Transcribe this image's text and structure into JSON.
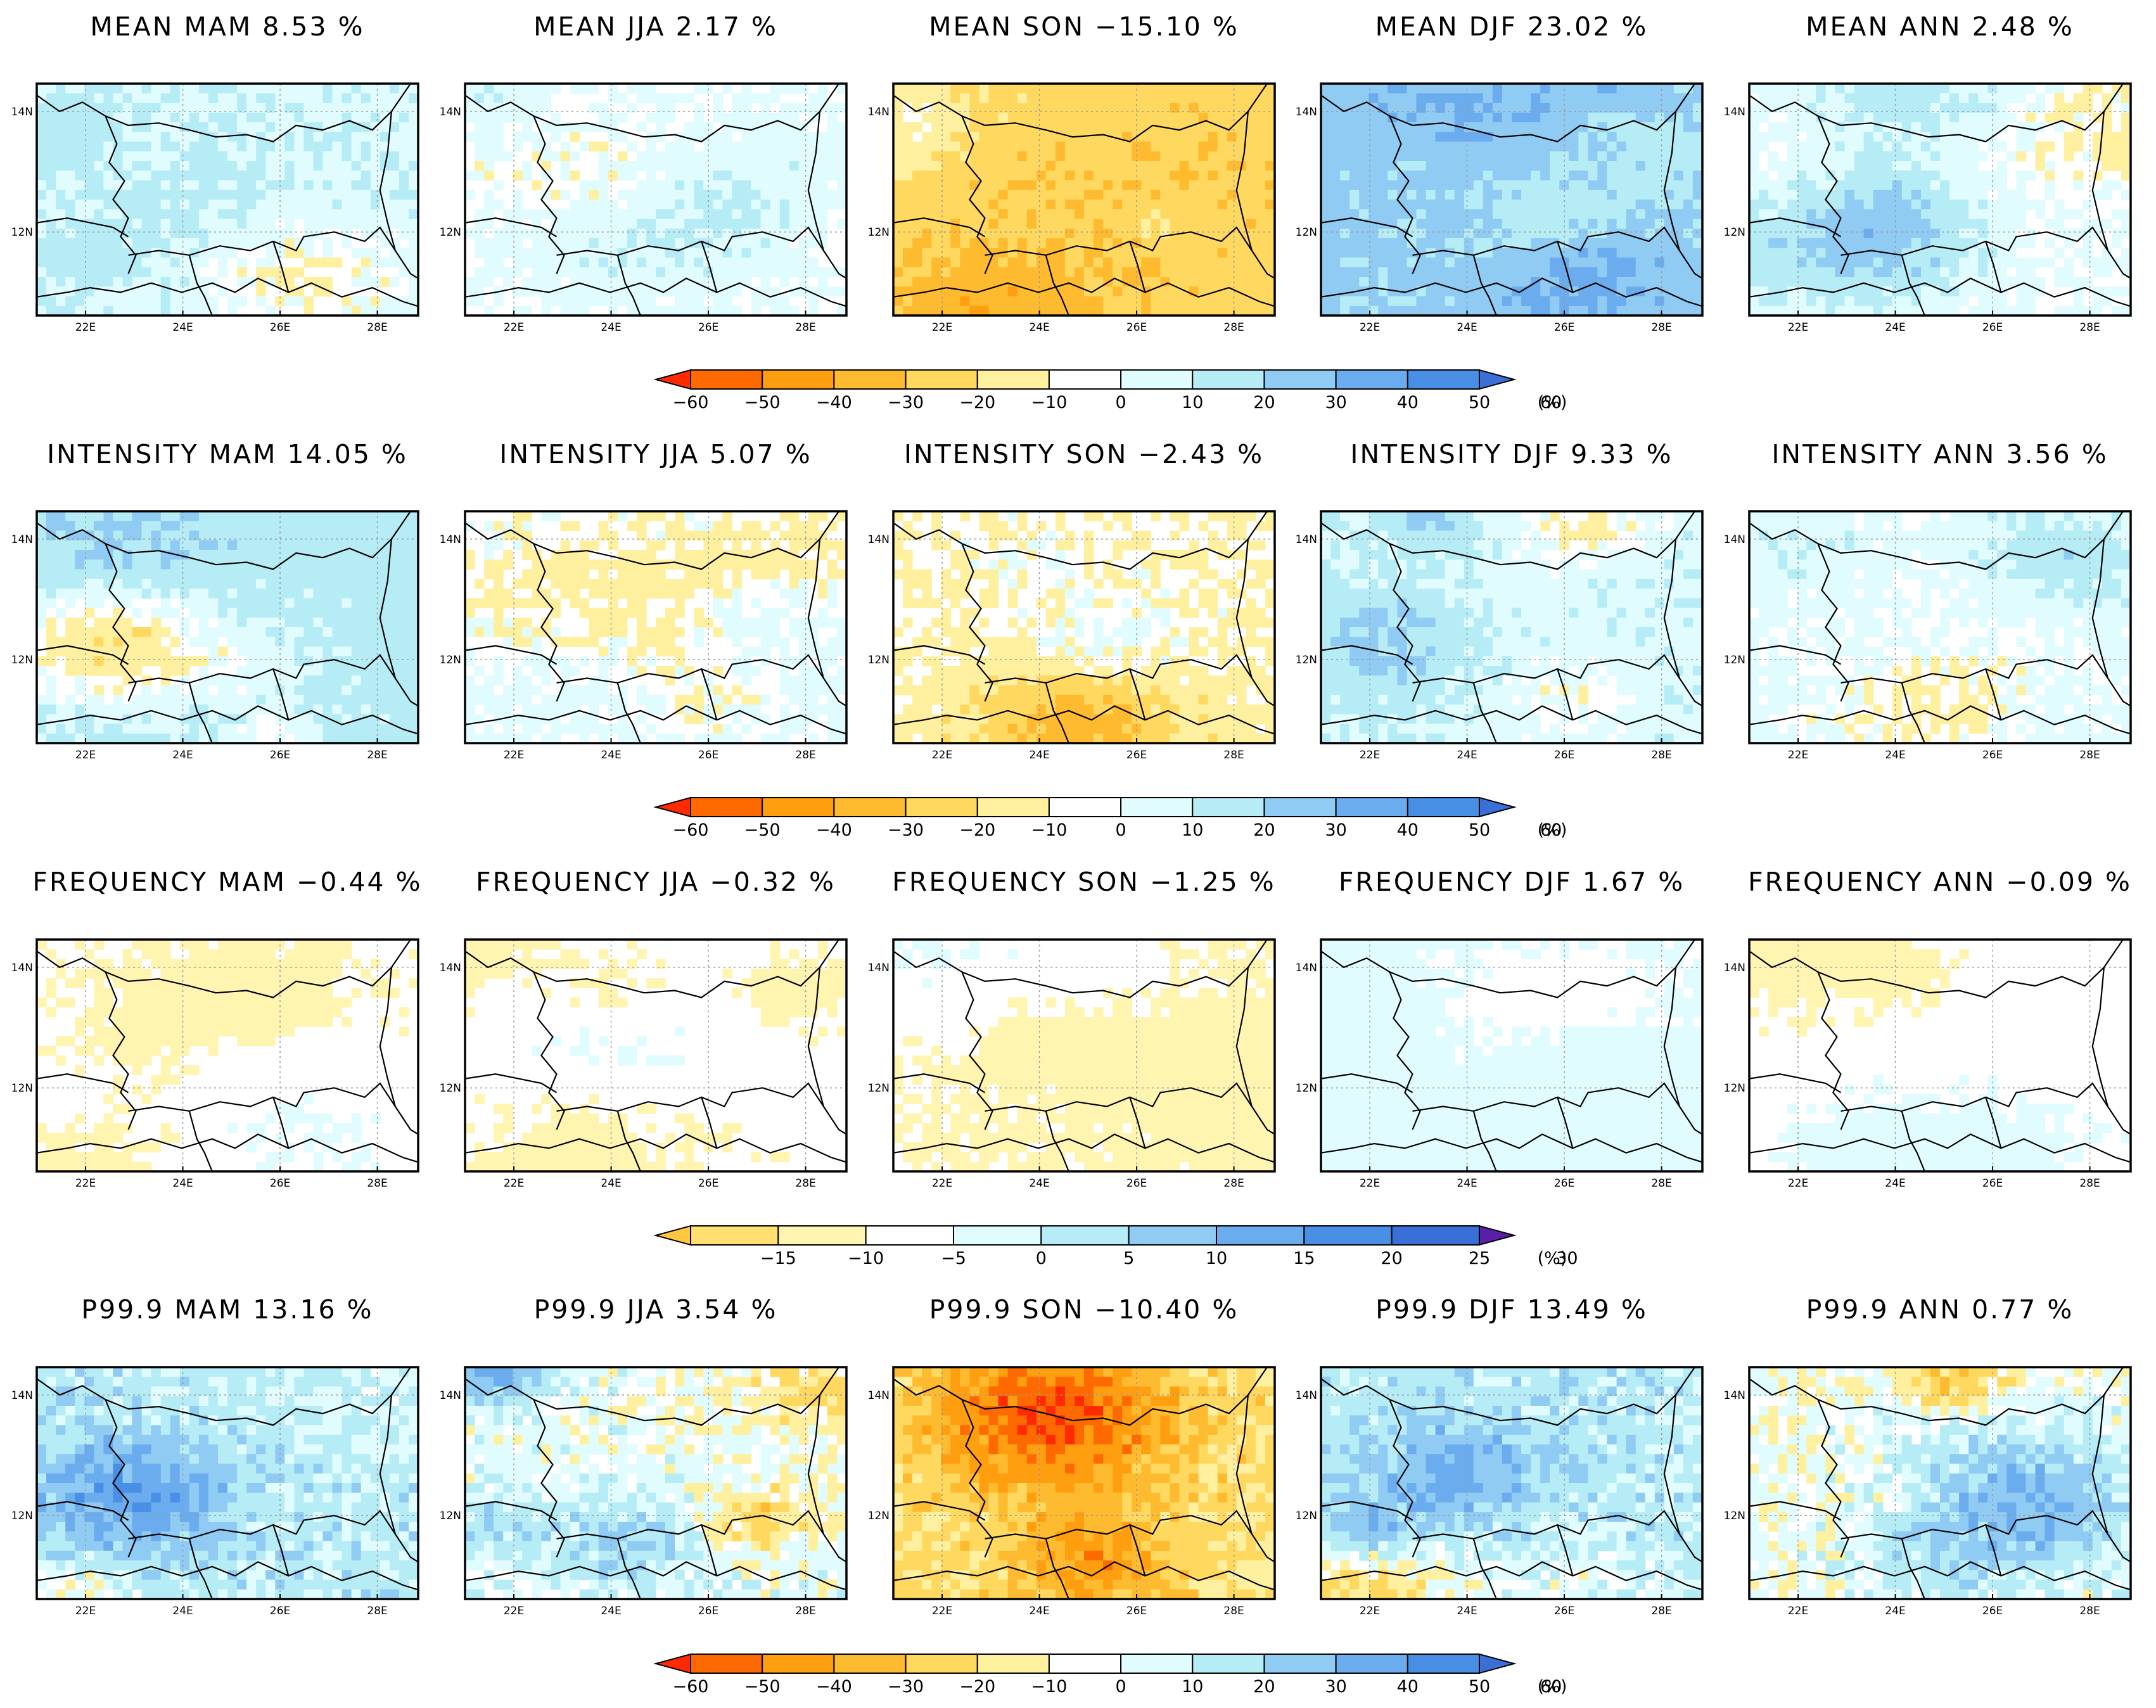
{
  "figure": {
    "seasons": [
      "MAM",
      "JJA",
      "SON",
      "DJF",
      "ANN"
    ],
    "unit_label": "(%)",
    "axis": {
      "lon_ticks": [
        "22E",
        "24E",
        "26E",
        "28E"
      ],
      "lat_ticks": [
        "14N",
        "12N"
      ]
    }
  },
  "chart_data": [
    {
      "type": "heatmap",
      "row": "MEAN",
      "titles": [
        "MEAN MAM 8.53 %",
        "MEAN JJA 2.17 %",
        "MEAN SON −15.10 %",
        "MEAN DJF 23.02 %",
        "MEAN ANN 2.48 %"
      ],
      "values": [
        8.53,
        2.17,
        -15.1,
        23.02,
        2.48
      ],
      "colorbar": {
        "ticks": [
          "−60",
          "−50",
          "−40",
          "−30",
          "−20",
          "−10",
          "0",
          "10",
          "20",
          "30",
          "40",
          "50",
          "60"
        ],
        "range": [
          -60,
          60
        ],
        "unit": "(%)"
      }
    },
    {
      "type": "heatmap",
      "row": "INTENSITY",
      "titles": [
        "INTENSITY MAM 14.05 %",
        "INTENSITY JJA 5.07 %",
        "INTENSITY SON −2.43 %",
        "INTENSITY DJF 9.33 %",
        "INTENSITY ANN 3.56 %"
      ],
      "values": [
        14.05,
        5.07,
        -2.43,
        9.33,
        3.56
      ],
      "colorbar": {
        "ticks": [
          "−60",
          "−50",
          "−40",
          "−30",
          "−20",
          "−10",
          "0",
          "10",
          "20",
          "30",
          "40",
          "50",
          "60"
        ],
        "range": [
          -60,
          60
        ],
        "unit": "(%)"
      }
    },
    {
      "type": "heatmap",
      "row": "FREQUENCY",
      "titles": [
        "FREQUENCY MAM −0.44 %",
        "FREQUENCY JJA −0.32 %",
        "FREQUENCY SON −1.25 %",
        "FREQUENCY DJF 1.67 %",
        "FREQUENCY ANN −0.09 %"
      ],
      "values": [
        -0.44,
        -0.32,
        -1.25,
        1.67,
        -0.09
      ],
      "colorbar": {
        "ticks": [
          "−15",
          "−10",
          "−5",
          "0",
          "5",
          "10",
          "15",
          "20",
          "25",
          "30"
        ],
        "range": [
          -15,
          30
        ],
        "unit": "(%)"
      }
    },
    {
      "type": "heatmap",
      "row": "P99.9",
      "titles": [
        "P99.9 MAM 13.16 %",
        "P99.9 JJA 3.54 %",
        "P99.9 SON −10.40 %",
        "P99.9 DJF 13.49 %",
        "P99.9 ANN 0.77 %"
      ],
      "values": [
        13.16,
        3.54,
        -10.4,
        13.49,
        0.77
      ],
      "colorbar": {
        "ticks": [
          "−60",
          "−50",
          "−40",
          "−30",
          "−20",
          "−10",
          "0",
          "10",
          "20",
          "30",
          "40",
          "50",
          "60"
        ],
        "range": [
          -60,
          60
        ],
        "unit": "(%)"
      }
    }
  ],
  "colors": {
    "palette_wide": [
      "#ff2a00",
      "#ff6a00",
      "#ff9f10",
      "#ffbb30",
      "#ffd860",
      "#fff0a0",
      "#ffffff",
      "#e0fcff",
      "#b6ecf6",
      "#8fcbf2",
      "#6aaced",
      "#4a8fe6",
      "#3a6fd8"
    ],
    "palette_freq": [
      "#ffc740",
      "#ffe070",
      "#fff4b0",
      "#ffffff",
      "#e0fcff",
      "#b6ecf6",
      "#8fcbf2",
      "#6aaced",
      "#4a8fe6",
      "#3a6fd8",
      "#5a1fa6"
    ],
    "border": "#000000",
    "grid": "#9a9a9a"
  }
}
